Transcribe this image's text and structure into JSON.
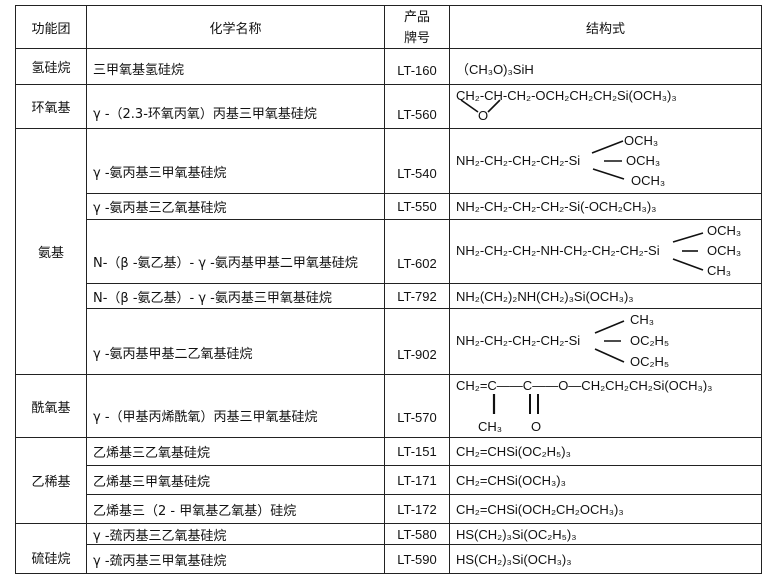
{
  "headers": {
    "group": "功能团",
    "name": "化学名称",
    "code": "产品\n牌号",
    "formula": "结构式"
  },
  "groups": {
    "hydro": "氢硅烷",
    "epoxy": "环氧基",
    "amino": "氨基",
    "acyloxy": "酰氧基",
    "vinyl": "乙稀基",
    "mercapto": "硫硅烷"
  },
  "rows": [
    {
      "name": "三甲氧基氢硅烷",
      "code": "LT-160",
      "formula": "（CH₃O)₃SiH"
    },
    {
      "name": "γ -（2.3-环氧丙氧）丙基三甲氧基硅烷",
      "code": "LT-560",
      "formula": "CH₂-CH-CH₂-OCH₂CH₂CH₂Si(OCH₃)₃",
      "extra": "O"
    },
    {
      "name": "γ -氨丙基三甲氧基硅烷",
      "code": "LT-540",
      "formula": "NH₂-CH₂-CH₂-CH₂-Si",
      "branches": [
        "OCH₃",
        "OCH₃",
        "OCH₃"
      ]
    },
    {
      "name": "γ -氨丙基三乙氧基硅烷",
      "code": "LT-550",
      "formula": "NH₂-CH₂-CH₂-CH₂-Si(-OCH₂CH₃)₃"
    },
    {
      "name": "N-（β -氨乙基）- γ -氨丙基甲基二甲氧基硅烷",
      "code": "LT-602",
      "formula": "NH₂-CH₂-CH₂-NH-CH₂-CH₂-CH₂-Si",
      "branches": [
        "OCH₃",
        "OCH₃",
        "CH₃"
      ]
    },
    {
      "name": "N-（β -氨乙基）- γ -氨丙基三甲氧基硅烷",
      "code": "LT-792",
      "formula": "NH₂(CH₂)₂NH(CH₂)₃Si(OCH₃)₃"
    },
    {
      "name": "γ -氨丙基甲基二乙氧基硅烷",
      "code": "LT-902",
      "formula": "NH₂-CH₂-CH₂-CH₂-Si",
      "branches": [
        "CH₃",
        "OC₂H₅",
        "OC₂H₅"
      ]
    },
    {
      "name": "γ -（甲基丙烯酰氧）丙基三甲氧基硅烷",
      "code": "LT-570",
      "formula": "CH₂=C——C——O—CH₂CH₂CH₂Si(OCH₃)₃",
      "sub1": "CH₃",
      "sub2": "O"
    },
    {
      "name": "乙烯基三乙氧基硅烷",
      "code": "LT-151",
      "formula": "CH₂=CHSi(OC₂H₅)₃"
    },
    {
      "name": "乙烯基三甲氧基硅烷",
      "code": "LT-171",
      "formula": "CH₂=CHSi(OCH₃)₃"
    },
    {
      "name": "乙烯基三（2 - 甲氧基乙氧基）硅烷",
      "code": "LT-172",
      "formula": "CH₂=CHSi(OCH₂CH₂OCH₃)₃"
    },
    {
      "name": "γ -巯丙基三乙氧基硅烷",
      "code": "LT-580",
      "formula": "HS(CH₂)₃Si(OC₂H₅)₃"
    },
    {
      "name": "γ -巯丙基三甲氧基硅烷",
      "code": "LT-590",
      "formula": "HS(CH₂)₃Si(OCH₃)₃"
    }
  ]
}
